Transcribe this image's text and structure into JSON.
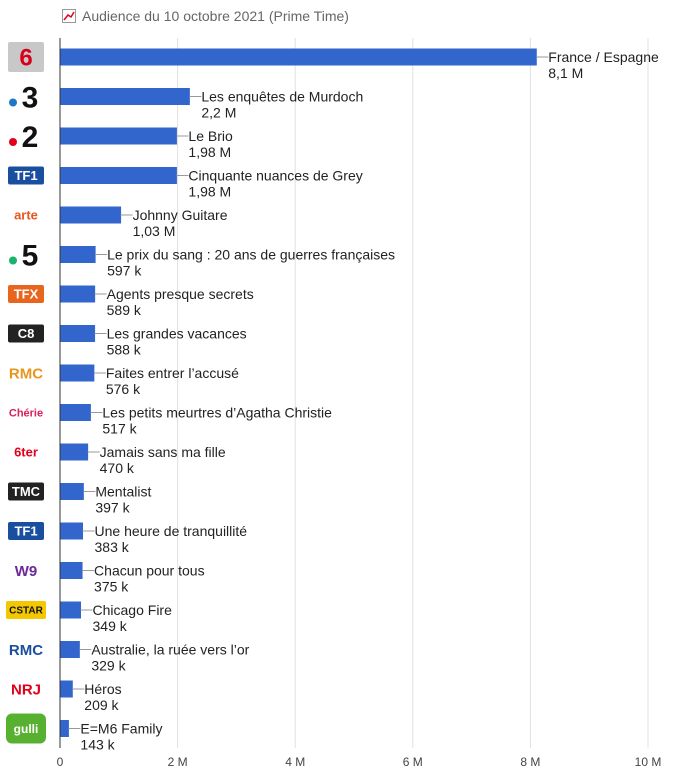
{
  "chart_data": {
    "type": "bar",
    "orientation": "horizontal",
    "title": "Audience du 10 octobre 2021 (Prime Time)",
    "xlim": [
      0,
      10.5
    ],
    "x_ticks": [
      {
        "value": 0,
        "label": "0"
      },
      {
        "value": 2,
        "label": "2 M"
      },
      {
        "value": 4,
        "label": "4 M"
      },
      {
        "value": 6,
        "label": "6 M"
      },
      {
        "value": 8,
        "label": "8 M"
      },
      {
        "value": 10,
        "label": "10 M"
      }
    ],
    "grid": true,
    "bar_color": "#3366cc",
    "bars": [
      {
        "channel": "M6",
        "program": "France / Espagne",
        "value": 8.1,
        "value_label": "8,1 M"
      },
      {
        "channel": "France 3",
        "program": "Les enquêtes de Murdoch",
        "value": 2.2,
        "value_label": "2,2 M"
      },
      {
        "channel": "France 2",
        "program": "Le Brio",
        "value": 1.98,
        "value_label": "1,98 M"
      },
      {
        "channel": "TF1",
        "program": "Cinquante nuances de Grey",
        "value": 1.98,
        "value_label": "1,98 M"
      },
      {
        "channel": "arte",
        "program": "Johnny Guitare",
        "value": 1.03,
        "value_label": "1,03 M"
      },
      {
        "channel": "France 5",
        "program": "Le prix du sang : 20 ans de guerres françaises",
        "value": 0.597,
        "value_label": "597 k"
      },
      {
        "channel": "TFX",
        "program": "Agents presque secrets",
        "value": 0.589,
        "value_label": "589 k"
      },
      {
        "channel": "C8",
        "program": "Les grandes vacances",
        "value": 0.588,
        "value_label": "588 k"
      },
      {
        "channel": "RMC Story",
        "program": "Faites entrer l’accusé",
        "value": 0.576,
        "value_label": "576 k"
      },
      {
        "channel": "Chérie 25",
        "program": "Les petits meurtres d’Agatha Christie",
        "value": 0.517,
        "value_label": "517 k"
      },
      {
        "channel": "6ter",
        "program": "Jamais sans ma fille",
        "value": 0.47,
        "value_label": "470 k"
      },
      {
        "channel": "TMC",
        "program": "Mentalist",
        "value": 0.397,
        "value_label": "397 k"
      },
      {
        "channel": "TF1 Séries Films",
        "program": "Une heure de tranquillité",
        "value": 0.383,
        "value_label": "383 k"
      },
      {
        "channel": "W9",
        "program": "Chacun pour tous",
        "value": 0.375,
        "value_label": "375 k"
      },
      {
        "channel": "CStar",
        "program": "Chicago Fire",
        "value": 0.349,
        "value_label": "349 k"
      },
      {
        "channel": "RMC Découverte",
        "program": "Australie, la ruée vers l’or",
        "value": 0.329,
        "value_label": "329 k"
      },
      {
        "channel": "NRJ 12",
        "program": "Héros",
        "value": 0.209,
        "value_label": "209 k"
      },
      {
        "channel": "Gulli",
        "program": "E=M6 Family",
        "value": 0.143,
        "value_label": "143 k"
      }
    ],
    "logos": [
      {
        "text": "6",
        "bg": "#c8c8c8",
        "fg": "#d6001c"
      },
      {
        "text": "3",
        "dot": "#1e78c8",
        "fg": "#111111"
      },
      {
        "text": "2",
        "dot": "#e2001a",
        "fg": "#111111"
      },
      {
        "text": "TF1",
        "bg": "#1a4fa0",
        "fg": "#ffffff"
      },
      {
        "text": "arte",
        "bg": "",
        "fg": "#e8561e"
      },
      {
        "text": "5",
        "dot": "#18b46b",
        "fg": "#111111"
      },
      {
        "text": "TFX",
        "bg": "#e8651e",
        "fg": "#ffffff"
      },
      {
        "text": "C8",
        "bg": "#222222",
        "fg": "#ffffff"
      },
      {
        "text": "RMC",
        "bg": "",
        "fg": "#e8961e"
      },
      {
        "text": "Chérie",
        "bg": "",
        "fg": "#d8205a"
      },
      {
        "text": "6ter",
        "bg": "",
        "fg": "#e2001a"
      },
      {
        "text": "TMC",
        "bg": "#222222",
        "fg": "#ffffff"
      },
      {
        "text": "TF1",
        "bg": "#1a4fa0",
        "fg": "#ffffff"
      },
      {
        "text": "W9",
        "bg": "",
        "fg": "#6a2a9a"
      },
      {
        "text": "CSTAR",
        "bg": "#f4c800",
        "fg": "#111111"
      },
      {
        "text": "RMC",
        "bg": "",
        "fg": "#1a4fa0"
      },
      {
        "text": "NRJ",
        "bg": "",
        "fg": "#e2001a"
      },
      {
        "text": "gulli",
        "bg": "#58b030",
        "fg": "#ffffff"
      }
    ]
  }
}
